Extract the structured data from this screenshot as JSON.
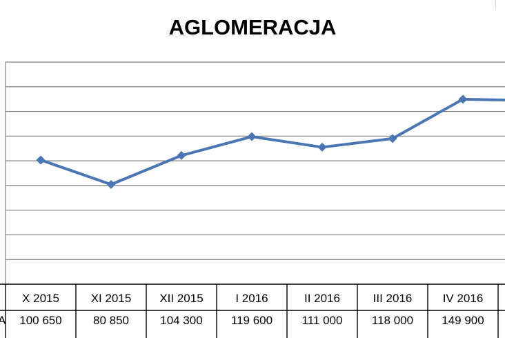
{
  "chart_data": {
    "type": "line",
    "title": "AGLOMERACJA",
    "categories": [
      "X 2015",
      "XI 2015",
      "XII 2015",
      "I 2016",
      "II 2016",
      "III 2016",
      "IV 2016",
      ""
    ],
    "series": [
      {
        "name": "",
        "values": [
          100650,
          80850,
          104300,
          119600,
          111000,
          118000,
          149900,
          148800
        ],
        "labels": [
          "100 650",
          "80 850",
          "104 300",
          "119 600",
          "111 000",
          "118 000",
          "149 900",
          ""
        ]
      }
    ],
    "row_label": "A",
    "ylim": [
      0,
      180000
    ],
    "ystep": 20000,
    "grid": true,
    "line_color": "#4a76b3",
    "grid_color": "#7f7f7f",
    "table_border_color": "#000000"
  }
}
